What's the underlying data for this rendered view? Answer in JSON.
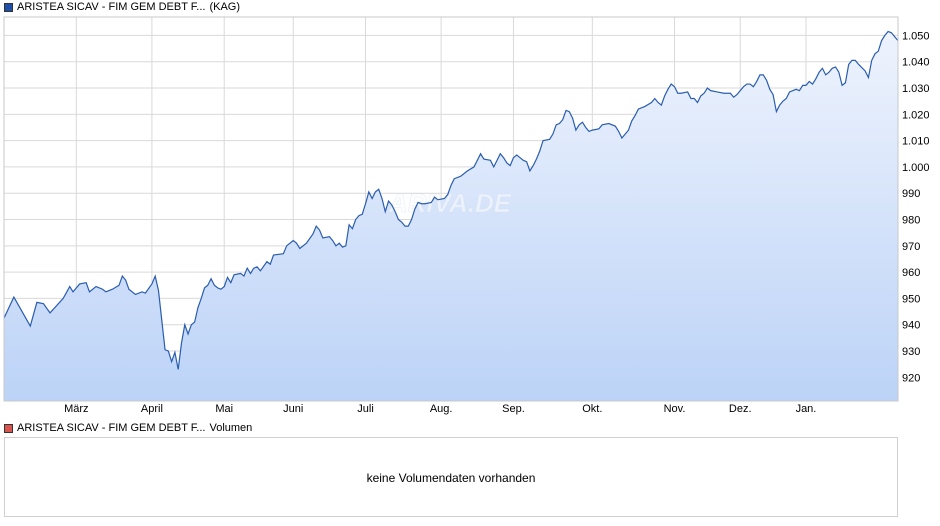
{
  "legend_price": {
    "name": "ARISTEA SICAV - FIM GEM DEBT F...",
    "suffix": "(KAG)"
  },
  "legend_volume": {
    "name": "ARISTEA SICAV - FIM GEM DEBT F...",
    "suffix": "Volumen"
  },
  "watermark": "ARIVA.DE",
  "volume_panel": {
    "message": "keine Volumendaten vorhanden"
  },
  "colors": {
    "line": "#2a5db0",
    "fill_top": "#eef3fd",
    "fill_bottom": "#bcd3f7",
    "grid": "#d9d9d9"
  },
  "chart_data": {
    "type": "area",
    "xlabel": "",
    "ylabel": "",
    "ylim": [
      911,
      1057
    ],
    "yticks": [
      920,
      930,
      940,
      950,
      960,
      970,
      980,
      990,
      1000,
      1010,
      1020,
      1030,
      1040,
      1050
    ],
    "ytick_labels": [
      "920",
      "930",
      "940",
      "950",
      "960",
      "970",
      "980",
      "990",
      "1.000",
      "1.010",
      "1.020",
      "1.030",
      "1.040",
      "1.050"
    ],
    "x_range": [
      0,
      272
    ],
    "xticks": [
      {
        "label": "März",
        "x": 22
      },
      {
        "label": "April",
        "x": 45
      },
      {
        "label": "Mai",
        "x": 67
      },
      {
        "label": "Juni",
        "x": 88
      },
      {
        "label": "Juli",
        "x": 110
      },
      {
        "label": "Aug.",
        "x": 133
      },
      {
        "label": "Sep.",
        "x": 155
      },
      {
        "label": "Okt.",
        "x": 179
      },
      {
        "label": "Nov.",
        "x": 204
      },
      {
        "label": "Dez.",
        "x": 224
      },
      {
        "label": "Jan.",
        "x": 244
      }
    ],
    "grid": true,
    "series": [
      {
        "points": [
          [
            0,
            942.5
          ],
          [
            3,
            950.5
          ],
          [
            8,
            939.5
          ],
          [
            10,
            948.5
          ],
          [
            12,
            948.0
          ],
          [
            14,
            944.5
          ],
          [
            18,
            950.0
          ],
          [
            20,
            954.5
          ],
          [
            21,
            952.5
          ],
          [
            23,
            955.5
          ],
          [
            25,
            956.0
          ],
          [
            26,
            952.5
          ],
          [
            28,
            954.5
          ],
          [
            30,
            953.5
          ],
          [
            31,
            952.5
          ],
          [
            33,
            953.5
          ],
          [
            35,
            955.0
          ],
          [
            36,
            958.5
          ],
          [
            37,
            957.0
          ],
          [
            38,
            953.5
          ],
          [
            40,
            951.5
          ],
          [
            42,
            952.5
          ],
          [
            43,
            952.0
          ],
          [
            45,
            955.5
          ],
          [
            46,
            958.5
          ],
          [
            47,
            953.0
          ],
          [
            49,
            930.5
          ],
          [
            50,
            930.0
          ],
          [
            51,
            926.0
          ],
          [
            52,
            929.5
          ],
          [
            53,
            923.0
          ],
          [
            54,
            933.0
          ],
          [
            55,
            940.0
          ],
          [
            56,
            936.5
          ],
          [
            57,
            940.0
          ],
          [
            58,
            941.0
          ],
          [
            59,
            946.5
          ],
          [
            60,
            950.0
          ],
          [
            61,
            954.0
          ],
          [
            62,
            955.0
          ],
          [
            63,
            957.5
          ],
          [
            64,
            955.0
          ],
          [
            65,
            954.0
          ],
          [
            66,
            953.5
          ],
          [
            67,
            954.5
          ],
          [
            68,
            958.0
          ],
          [
            69,
            956.0
          ],
          [
            70,
            959.0
          ],
          [
            72,
            959.5
          ],
          [
            73,
            958.5
          ],
          [
            74,
            961.5
          ],
          [
            75,
            959.5
          ],
          [
            76,
            961.5
          ],
          [
            77,
            962.0
          ],
          [
            78,
            960.5
          ],
          [
            80,
            964.0
          ],
          [
            81,
            963.0
          ],
          [
            82,
            966.5
          ],
          [
            85,
            967.0
          ],
          [
            86,
            970.0
          ],
          [
            88,
            972.0
          ],
          [
            89,
            971.0
          ],
          [
            90,
            969.0
          ],
          [
            92,
            971.0
          ],
          [
            94,
            974.5
          ],
          [
            95,
            977.5
          ],
          [
            96,
            976.0
          ],
          [
            97,
            973.0
          ],
          [
            99,
            973.5
          ],
          [
            100,
            972.0
          ],
          [
            101,
            970.0
          ],
          [
            102,
            971.0
          ],
          [
            103,
            969.5
          ],
          [
            104,
            970.0
          ],
          [
            105,
            978.0
          ],
          [
            106,
            976.5
          ],
          [
            107,
            980.0
          ],
          [
            108,
            981.5
          ],
          [
            109,
            982.0
          ],
          [
            110,
            986.0
          ],
          [
            111,
            990.5
          ],
          [
            112,
            988.0
          ],
          [
            113,
            990.5
          ],
          [
            114,
            991.5
          ],
          [
            115,
            988.0
          ],
          [
            116,
            983.0
          ],
          [
            117,
            987.0
          ],
          [
            118,
            985.5
          ],
          [
            119,
            983.0
          ],
          [
            120,
            980.0
          ],
          [
            121,
            979.0
          ],
          [
            122,
            977.5
          ],
          [
            123,
            977.5
          ],
          [
            124,
            980.0
          ],
          [
            125,
            984.0
          ],
          [
            126,
            986.5
          ],
          [
            127,
            986.0
          ],
          [
            128,
            986.0
          ],
          [
            130,
            986.5
          ],
          [
            131,
            988.5
          ],
          [
            132,
            987.5
          ],
          [
            134,
            988.0
          ],
          [
            135,
            989.5
          ],
          [
            136,
            993.0
          ],
          [
            137,
            995.5
          ],
          [
            139,
            996.5
          ],
          [
            141,
            998.5
          ],
          [
            143,
            1000.0
          ],
          [
            144,
            1002.5
          ],
          [
            145,
            1005.0
          ],
          [
            146,
            1003.0
          ],
          [
            148,
            1002.5
          ],
          [
            149,
            1000.0
          ],
          [
            150,
            1002.5
          ],
          [
            151,
            1005.0
          ],
          [
            152,
            1003.5
          ],
          [
            153,
            1001.5
          ],
          [
            154,
            1000.5
          ],
          [
            155,
            1003.5
          ],
          [
            156,
            1004.5
          ],
          [
            157,
            1003.5
          ],
          [
            158,
            1002.5
          ],
          [
            159,
            1002.0
          ],
          [
            160,
            998.5
          ],
          [
            161,
            1000.5
          ],
          [
            162,
            1003.0
          ],
          [
            163,
            1006.0
          ],
          [
            164,
            1010.0
          ],
          [
            166,
            1010.5
          ],
          [
            167,
            1012.5
          ],
          [
            168,
            1016.0
          ],
          [
            169,
            1016.5
          ],
          [
            170,
            1018.0
          ],
          [
            171,
            1021.5
          ],
          [
            172,
            1021.0
          ],
          [
            173,
            1018.5
          ],
          [
            174,
            1014.0
          ],
          [
            175,
            1016.0
          ],
          [
            176,
            1017.0
          ],
          [
            177,
            1015.0
          ],
          [
            178,
            1013.5
          ],
          [
            179,
            1014.0
          ],
          [
            181,
            1014.5
          ],
          [
            182,
            1016.0
          ],
          [
            184,
            1016.5
          ],
          [
            186,
            1015.5
          ],
          [
            187,
            1013.5
          ],
          [
            188,
            1011.0
          ],
          [
            190,
            1014.0
          ],
          [
            191,
            1017.5
          ],
          [
            192,
            1019.5
          ],
          [
            193,
            1022.0
          ],
          [
            195,
            1023.0
          ],
          [
            197,
            1024.5
          ],
          [
            198,
            1026.0
          ],
          [
            199,
            1024.5
          ],
          [
            200,
            1023.5
          ],
          [
            201,
            1027.0
          ],
          [
            202,
            1029.5
          ],
          [
            203,
            1031.5
          ],
          [
            204,
            1030.5
          ],
          [
            205,
            1028.0
          ],
          [
            206,
            1028.0
          ],
          [
            208,
            1028.5
          ],
          [
            209,
            1026.0
          ],
          [
            210,
            1026.0
          ],
          [
            211,
            1024.5
          ],
          [
            212,
            1027.0
          ],
          [
            213,
            1028.0
          ],
          [
            214,
            1030.0
          ],
          [
            215,
            1029.0
          ],
          [
            217,
            1028.5
          ],
          [
            219,
            1028.0
          ],
          [
            221,
            1028.0
          ],
          [
            222,
            1026.5
          ],
          [
            223,
            1027.5
          ],
          [
            224,
            1029.0
          ],
          [
            225,
            1030.5
          ],
          [
            226,
            1031.5
          ],
          [
            227,
            1031.5
          ],
          [
            228,
            1030.5
          ],
          [
            229,
            1032.5
          ],
          [
            230,
            1035.0
          ],
          [
            231,
            1035.0
          ],
          [
            232,
            1033.0
          ],
          [
            233,
            1029.5
          ],
          [
            234,
            1027.5
          ],
          [
            235,
            1021.0
          ],
          [
            236,
            1023.5
          ],
          [
            237,
            1025.0
          ],
          [
            238,
            1026.0
          ],
          [
            239,
            1028.5
          ],
          [
            241,
            1029.5
          ],
          [
            242,
            1029.0
          ],
          [
            243,
            1031.0
          ],
          [
            244,
            1031.0
          ],
          [
            245,
            1032.5
          ],
          [
            246,
            1031.5
          ],
          [
            247,
            1033.5
          ],
          [
            248,
            1036.0
          ],
          [
            249,
            1037.5
          ],
          [
            250,
            1035.0
          ],
          [
            251,
            1036.0
          ],
          [
            252,
            1037.5
          ],
          [
            253,
            1038.0
          ],
          [
            254,
            1036.0
          ],
          [
            255,
            1031.0
          ],
          [
            256,
            1032.0
          ],
          [
            257,
            1039.0
          ],
          [
            258,
            1040.5
          ],
          [
            259,
            1040.5
          ],
          [
            260,
            1039.0
          ],
          [
            262,
            1036.5
          ],
          [
            263,
            1034.0
          ],
          [
            264,
            1040.5
          ],
          [
            265,
            1043.0
          ],
          [
            266,
            1044.0
          ],
          [
            267,
            1048.0
          ],
          [
            268,
            1050.0
          ],
          [
            269,
            1051.5
          ],
          [
            270,
            1051.0
          ],
          [
            271,
            1049.5
          ],
          [
            272,
            1048.0
          ]
        ]
      }
    ]
  }
}
